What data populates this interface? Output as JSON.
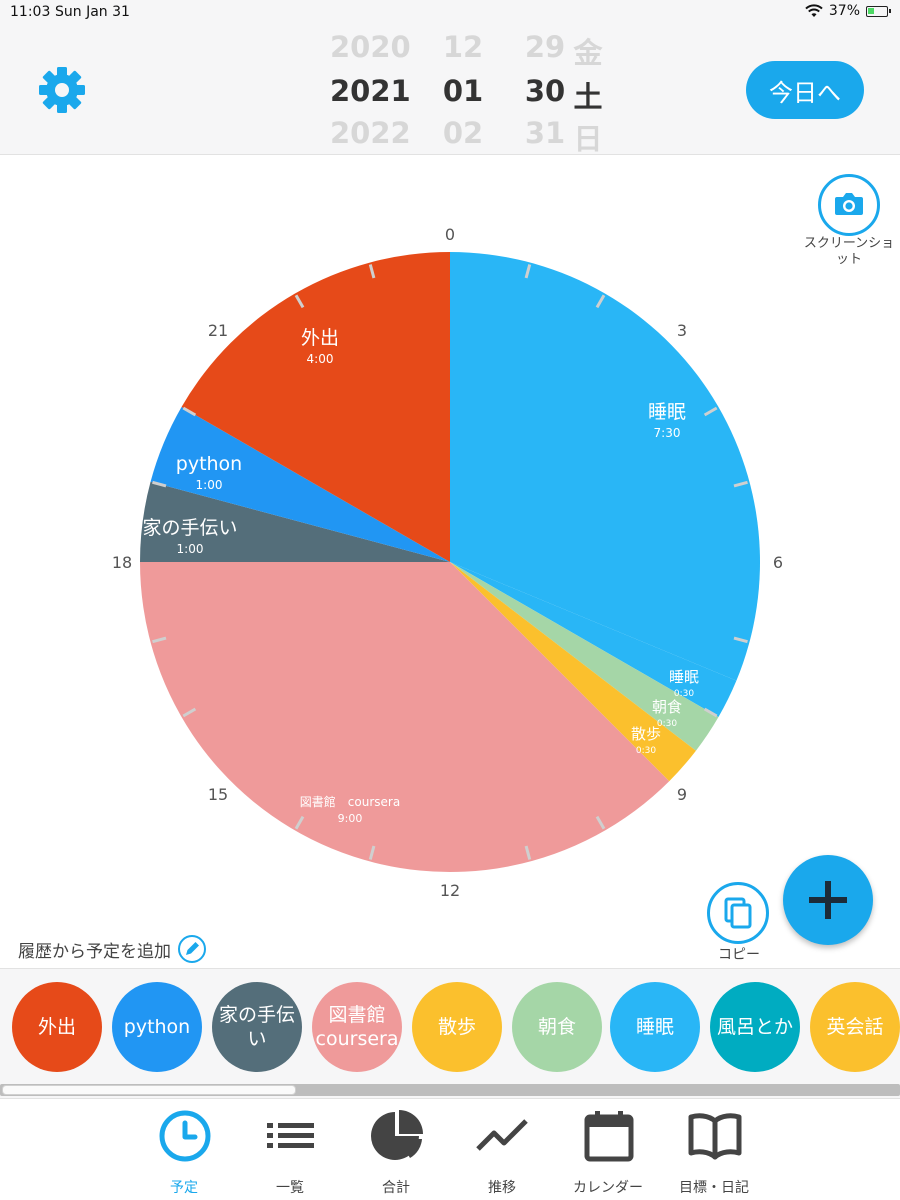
{
  "status_bar": {
    "time": "11:03",
    "date": "Sun Jan 31",
    "battery": "37%"
  },
  "date_picker": {
    "year": {
      "prev": "2020",
      "current": "2021",
      "next": "2022"
    },
    "month": {
      "prev": "12",
      "current": "01",
      "next": "02"
    },
    "day": {
      "prev": "29",
      "current": "30",
      "next": "31"
    },
    "weekday": {
      "prev": "金",
      "current": "土",
      "next": "日"
    }
  },
  "today_button": "今日へ",
  "screenshot_label": "スクリーンショット",
  "copy_label": "コピー",
  "history_label": "履歴から予定を追加",
  "colors": {
    "accent": "#1aa8ec",
    "sleep": "#29b6f6",
    "breakfast": "#a5d6a7",
    "walk": "#fbc02d",
    "library": "#ef9a9a",
    "family": "#546e7a",
    "python": "#2196f3",
    "outing": "#e64a19",
    "bath": "#00acc1"
  },
  "chart_data": {
    "type": "pie",
    "hour_labels": [
      "0",
      "3",
      "6",
      "9",
      "12",
      "15",
      "18",
      "21"
    ],
    "slices": [
      {
        "label": "睡眠",
        "duration": "7:30",
        "start": 0,
        "end": 7.5,
        "color": "#29b6f6"
      },
      {
        "label": "睡眠",
        "duration": "0:30",
        "start": 7.5,
        "end": 8,
        "color": "#29b6f6"
      },
      {
        "label": "朝食",
        "duration": "0:30",
        "start": 8,
        "end": 8.5,
        "color": "#a5d6a7"
      },
      {
        "label": "散歩",
        "duration": "0:30",
        "start": 8.5,
        "end": 9,
        "color": "#fbc02d"
      },
      {
        "label": "図書館　coursera",
        "duration": "9:00",
        "start": 9,
        "end": 18,
        "color": "#ef9a9a"
      },
      {
        "label": "家の手伝い",
        "duration": "1:00",
        "start": 18,
        "end": 19,
        "color": "#546e7a"
      },
      {
        "label": "python",
        "duration": "1:00",
        "start": 19,
        "end": 20,
        "color": "#2196f3"
      },
      {
        "label": "外出",
        "duration": "4:00",
        "start": 20,
        "end": 24,
        "color": "#e64a19"
      }
    ]
  },
  "chips": [
    {
      "label": "外出",
      "color": "#e64a19"
    },
    {
      "label": "python",
      "color": "#2196f3"
    },
    {
      "label": "家の手伝い",
      "color": "#546e7a"
    },
    {
      "label": "図書館 coursera",
      "color": "#ef9a9a"
    },
    {
      "label": "散歩",
      "color": "#fbc02d"
    },
    {
      "label": "朝食",
      "color": "#a5d6a7"
    },
    {
      "label": "睡眠",
      "color": "#29b6f6"
    },
    {
      "label": "風呂とか",
      "color": "#00acc1"
    },
    {
      "label": "英会話",
      "color": "#fbc02d"
    }
  ],
  "tabs": [
    {
      "label": "予定",
      "icon": "clock-icon",
      "active": true
    },
    {
      "label": "一覧",
      "icon": "list-icon"
    },
    {
      "label": "合計",
      "icon": "pie-chart-icon"
    },
    {
      "label": "推移",
      "icon": "trend-icon"
    },
    {
      "label": "カレンダー",
      "icon": "calendar-icon"
    },
    {
      "label": "目標・日記",
      "icon": "book-icon"
    }
  ]
}
